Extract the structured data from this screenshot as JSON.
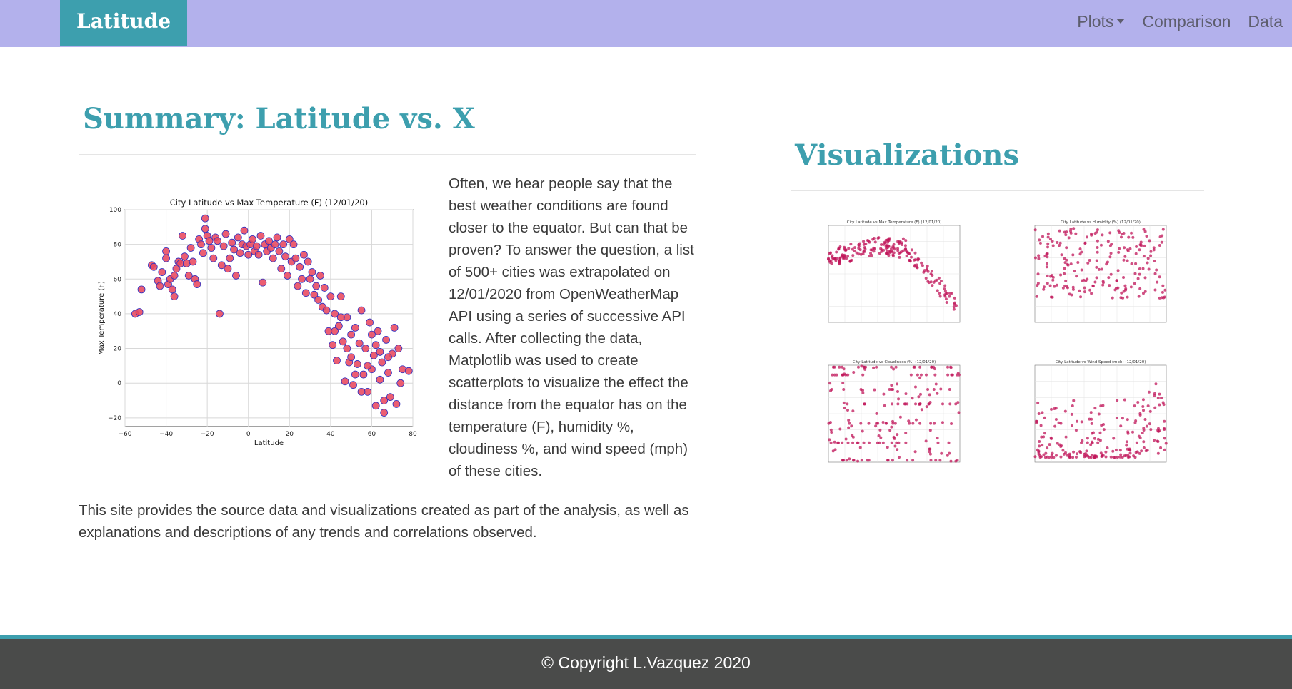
{
  "navbar": {
    "brand": "Latitude",
    "items": [
      {
        "label": "Plots",
        "dropdown": true
      },
      {
        "label": "Comparison"
      },
      {
        "label": "Data"
      }
    ],
    "bg_color": "#b3b1ec",
    "brand_color": "#3d9fae"
  },
  "summary": {
    "title": "Summary: Latitude vs. X",
    "paragraph1": "Often, we hear people say that the best weather conditions are found closer to the equator. But can that be proven? To answer the question, a list of 500+ cities was extrapolated on 12/01/2020 from OpenWeatherMap API using a series of successive API calls. After collecting the data, Matplotlib was used to create scatterplots to visualize the effect the distance from the equator has on the temperature (F), humidity %, cloudiness %, and wind speed (mph) of these cities.",
    "paragraph2": "This site provides the source data and visualizations created as part of the analysis, as well as explanations and descriptions of any trends and correlations observed."
  },
  "visualizations": {
    "title": "Visualizations"
  },
  "chart_data": [
    {
      "type": "scatter",
      "title": "City Latitude vs Max Temperature (F) (12/01/20)",
      "xlabel": "Latitude",
      "ylabel": "Max Temperature (F)",
      "xlim": [
        -60,
        80
      ],
      "ylim": [
        -25,
        100
      ],
      "xticks": [
        -60,
        -40,
        -20,
        0,
        20,
        40,
        60,
        80
      ],
      "yticks": [
        -20,
        0,
        20,
        40,
        60,
        80,
        100
      ],
      "grid": true,
      "marker_color": "#e8485e",
      "edge_color": "#3030c0",
      "points": [
        [
          -55,
          40
        ],
        [
          -53,
          41
        ],
        [
          -52,
          54
        ],
        [
          -47,
          68
        ],
        [
          -46,
          67
        ],
        [
          -44,
          59
        ],
        [
          -43,
          56
        ],
        [
          -42,
          64
        ],
        [
          -40,
          76
        ],
        [
          -40,
          72
        ],
        [
          -39,
          57
        ],
        [
          -38,
          60
        ],
        [
          -37,
          54
        ],
        [
          -36,
          50
        ],
        [
          -36,
          62
        ],
        [
          -35,
          66
        ],
        [
          -34,
          70
        ],
        [
          -33,
          69
        ],
        [
          -32,
          85
        ],
        [
          -31,
          73
        ],
        [
          -30,
          69
        ],
        [
          -29,
          62
        ],
        [
          -28,
          78
        ],
        [
          -27,
          70
        ],
        [
          -26,
          60
        ],
        [
          -25,
          57
        ],
        [
          -24,
          83
        ],
        [
          -23,
          80
        ],
        [
          -22,
          75
        ],
        [
          -21,
          89
        ],
        [
          -21,
          95
        ],
        [
          -20,
          85
        ],
        [
          -19,
          82
        ],
        [
          -18,
          78
        ],
        [
          -17,
          72
        ],
        [
          -16,
          84
        ],
        [
          -15,
          82
        ],
        [
          -14,
          40
        ],
        [
          -13,
          68
        ],
        [
          -12,
          79
        ],
        [
          -11,
          86
        ],
        [
          -10,
          66
        ],
        [
          -9,
          72
        ],
        [
          -8,
          81
        ],
        [
          -7,
          77
        ],
        [
          -6,
          62
        ],
        [
          -5,
          84
        ],
        [
          -4,
          75
        ],
        [
          -3,
          80
        ],
        [
          -2,
          88
        ],
        [
          -1,
          79
        ],
        [
          0,
          74
        ],
        [
          1,
          80
        ],
        [
          2,
          83
        ],
        [
          3,
          76
        ],
        [
          4,
          79
        ],
        [
          5,
          74
        ],
        [
          6,
          85
        ],
        [
          7,
          58
        ],
        [
          8,
          80
        ],
        [
          9,
          76
        ],
        [
          10,
          82
        ],
        [
          11,
          78
        ],
        [
          12,
          72
        ],
        [
          13,
          80
        ],
        [
          14,
          84
        ],
        [
          15,
          76
        ],
        [
          16,
          66
        ],
        [
          17,
          80
        ],
        [
          18,
          73
        ],
        [
          19,
          62
        ],
        [
          20,
          83
        ],
        [
          21,
          70
        ],
        [
          22,
          80
        ],
        [
          23,
          72
        ],
        [
          24,
          56
        ],
        [
          25,
          67
        ],
        [
          26,
          60
        ],
        [
          27,
          74
        ],
        [
          28,
          52
        ],
        [
          29,
          70
        ],
        [
          30,
          60
        ],
        [
          31,
          64
        ],
        [
          32,
          51
        ],
        [
          33,
          56
        ],
        [
          34,
          48
        ],
        [
          35,
          62
        ],
        [
          36,
          44
        ],
        [
          37,
          55
        ],
        [
          38,
          42
        ],
        [
          39,
          30
        ],
        [
          40,
          50
        ],
        [
          41,
          22
        ],
        [
          42,
          40
        ],
        [
          43,
          13
        ],
        [
          44,
          33
        ],
        [
          45,
          50
        ],
        [
          46,
          24
        ],
        [
          47,
          1
        ],
        [
          48,
          38
        ],
        [
          49,
          12
        ],
        [
          50,
          28
        ],
        [
          51,
          -1
        ],
        [
          52,
          32
        ],
        [
          53,
          11
        ],
        [
          54,
          23
        ],
        [
          55,
          42
        ],
        [
          56,
          5
        ],
        [
          57,
          20
        ],
        [
          58,
          -5
        ],
        [
          59,
          35
        ],
        [
          60,
          8
        ],
        [
          61,
          16
        ],
        [
          62,
          -13
        ],
        [
          63,
          30
        ],
        [
          64,
          2
        ],
        [
          65,
          12
        ],
        [
          66,
          -17
        ],
        [
          67,
          25
        ],
        [
          68,
          6
        ],
        [
          69,
          -8
        ],
        [
          70,
          17
        ],
        [
          71,
          32
        ],
        [
          72,
          -12
        ],
        [
          73,
          20
        ],
        [
          74,
          0
        ],
        [
          75,
          8
        ],
        [
          78,
          7
        ],
        [
          42,
          30
        ],
        [
          45,
          38
        ],
        [
          48,
          20
        ],
        [
          50,
          15
        ],
        [
          52,
          5
        ],
        [
          55,
          -5
        ],
        [
          58,
          10
        ],
        [
          60,
          28
        ],
        [
          62,
          22
        ],
        [
          64,
          18
        ],
        [
          66,
          -10
        ],
        [
          68,
          15
        ]
      ]
    }
  ],
  "thumbnails": [
    {
      "title": "City Latitude vs Max Temperature (F) (12/01/20)",
      "kind": "temperature"
    },
    {
      "title": "City Latitude vs Humidity (%) (12/01/20)",
      "kind": "humidity"
    },
    {
      "title": "City Latitude vs Cloudiness (%) (12/01/20)",
      "kind": "cloudiness"
    },
    {
      "title": "City Latitude vs Wind Speed (mph) (12/01/20)",
      "kind": "wind"
    }
  ],
  "footer": {
    "text": "© Copyright L.Vazquez 2020"
  }
}
